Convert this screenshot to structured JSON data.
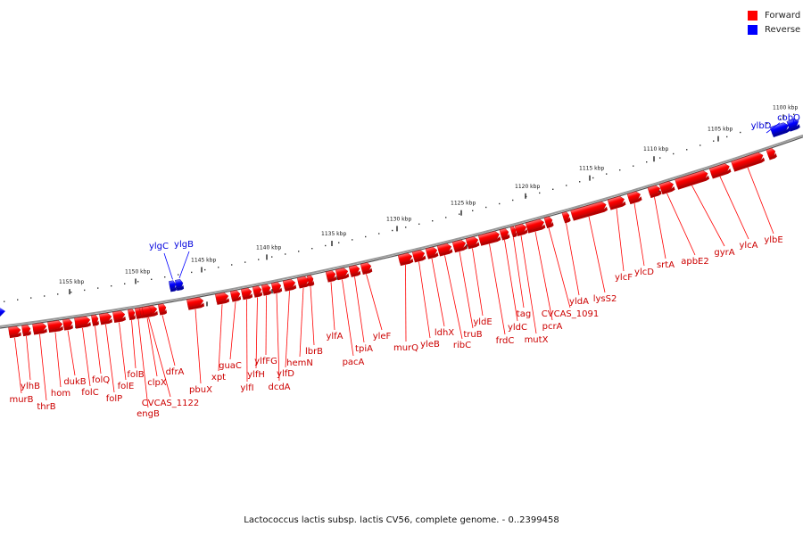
{
  "legend": {
    "forward": {
      "label": "Forward",
      "color": "#ff0000"
    },
    "reverse": {
      "label": "Reverse",
      "color": "#0000ff"
    }
  },
  "caption": "Lactococcus lactis subsp. lactis CV56, complete genome. - 0..2399458",
  "colors": {
    "forward": "#ff0000",
    "reverse": "#0000ff",
    "backbone": "#777777",
    "tick": "#222222"
  },
  "scale_ticks": [
    {
      "label": "1155 kbp"
    },
    {
      "label": "1150 kbp"
    },
    {
      "label": "1145 kbp"
    },
    {
      "label": "1140 kbp"
    },
    {
      "label": "1135 kbp"
    },
    {
      "label": "1130 kbp"
    },
    {
      "label": "1125 kbp"
    },
    {
      "label": "1120 kbp"
    },
    {
      "label": "1115 kbp"
    },
    {
      "label": "1110 kbp"
    },
    {
      "label": "1105 kbp"
    },
    {
      "label": "1100 kbp"
    }
  ],
  "reverse_genes": [
    {
      "name": "ylgC",
      "strand": "reverse"
    },
    {
      "name": "ylgB",
      "strand": "reverse"
    },
    {
      "name": "ylbD",
      "strand": "reverse"
    },
    {
      "name": "cobQ",
      "strand": "reverse"
    }
  ],
  "forward_genes": [
    {
      "name": "murB"
    },
    {
      "name": "ylhB"
    },
    {
      "name": "thrB"
    },
    {
      "name": "hom"
    },
    {
      "name": "dukB"
    },
    {
      "name": "folC"
    },
    {
      "name": "folQ"
    },
    {
      "name": "folP"
    },
    {
      "name": "folE"
    },
    {
      "name": "folB"
    },
    {
      "name": "engB"
    },
    {
      "name": "CVCAS_1122"
    },
    {
      "name": "clpX"
    },
    {
      "name": "dfrA"
    },
    {
      "name": "pbuX"
    },
    {
      "name": "xpt"
    },
    {
      "name": "guaC"
    },
    {
      "name": "ylfI"
    },
    {
      "name": "ylfH"
    },
    {
      "name": "ylfFG"
    },
    {
      "name": "dcdA"
    },
    {
      "name": "ylfD"
    },
    {
      "name": "hemN"
    },
    {
      "name": "lbrB"
    },
    {
      "name": "ylfA"
    },
    {
      "name": "pacA"
    },
    {
      "name": "tpiA"
    },
    {
      "name": "yleF"
    },
    {
      "name": "murQ"
    },
    {
      "name": "yleB"
    },
    {
      "name": "ldhX"
    },
    {
      "name": "ribC"
    },
    {
      "name": "truB"
    },
    {
      "name": "yldE"
    },
    {
      "name": "frdC"
    },
    {
      "name": "yldC"
    },
    {
      "name": "tag"
    },
    {
      "name": "mutX"
    },
    {
      "name": "pcrA"
    },
    {
      "name": "CVCAS_1091"
    },
    {
      "name": "yldA"
    },
    {
      "name": "lysS2"
    },
    {
      "name": "ylcF"
    },
    {
      "name": "ylcD"
    },
    {
      "name": "srtA"
    },
    {
      "name": "apbE2"
    },
    {
      "name": "gyrA"
    },
    {
      "name": "ylcA"
    },
    {
      "name": "ylbE"
    }
  ]
}
